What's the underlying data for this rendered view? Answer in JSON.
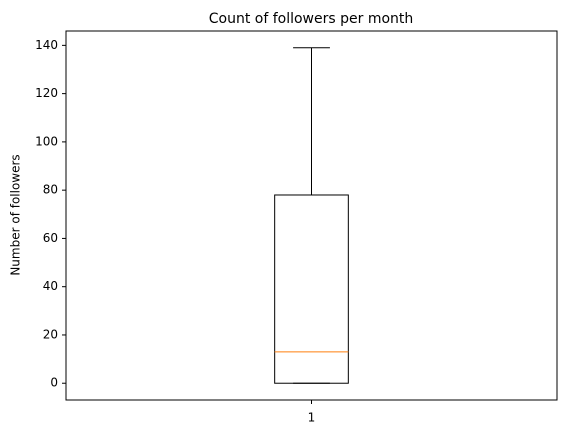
{
  "chart_data": {
    "type": "box",
    "title": "Count of followers per month",
    "ylabel": "Number of followers",
    "categories": [
      "1"
    ],
    "boxes": [
      {
        "min": 0,
        "q1": 0,
        "median": 13,
        "q3": 78,
        "max": 139
      }
    ],
    "box_color": "#000000",
    "median_color": "#ff7f0e",
    "ylim": [
      -6.95,
      145.95
    ],
    "yticks": [
      0,
      20,
      40,
      60,
      80,
      100,
      120,
      140
    ],
    "grid": false
  }
}
